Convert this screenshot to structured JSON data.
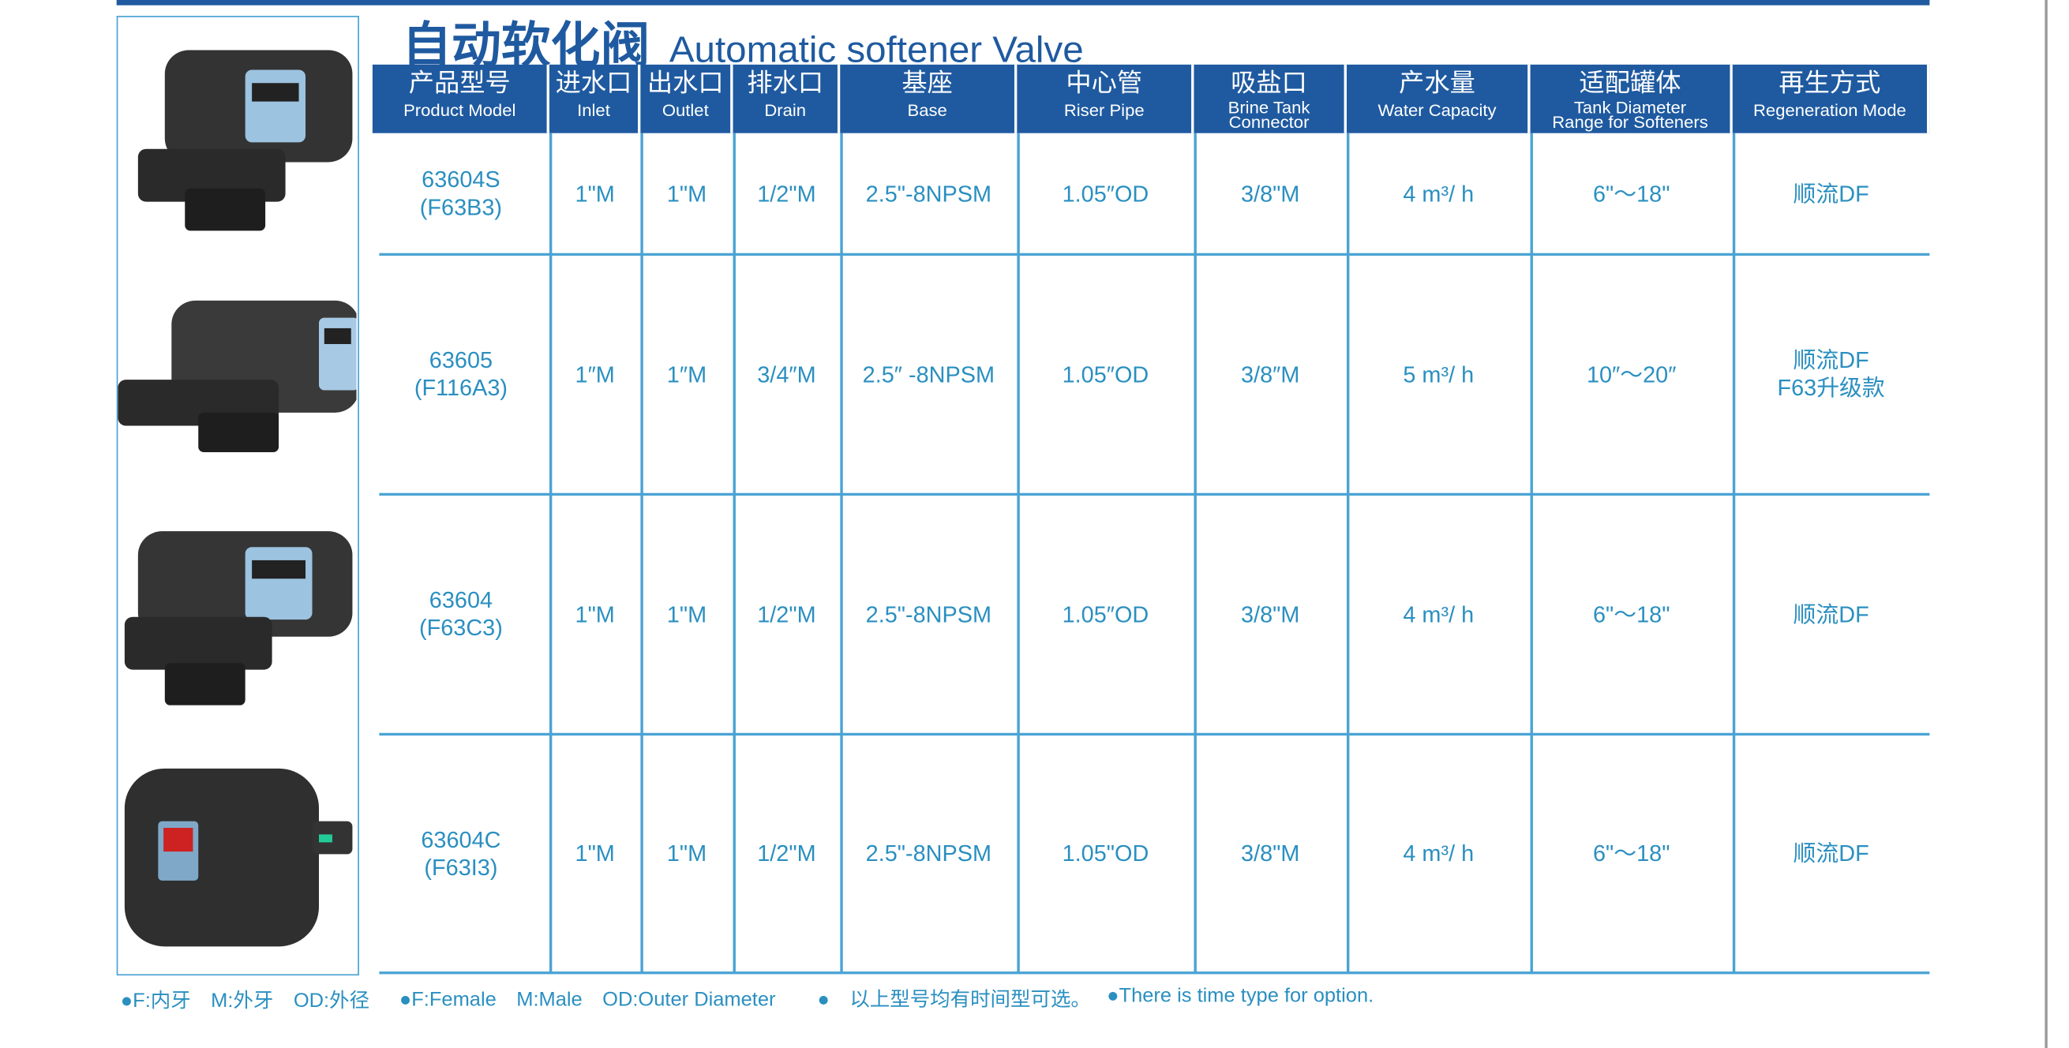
{
  "header": {
    "title_cn": "自动软化阀",
    "title_en": "Automatic softener Valve"
  },
  "table": {
    "columns": [
      {
        "cn": "产品型号",
        "en": [
          "Product Model"
        ]
      },
      {
        "cn": "进水口",
        "en": [
          "Inlet"
        ]
      },
      {
        "cn": "出水口",
        "en": [
          "Outlet"
        ]
      },
      {
        "cn": "排水口",
        "en": [
          "Drain"
        ]
      },
      {
        "cn": "基座",
        "en": [
          "Base"
        ]
      },
      {
        "cn": "中心管",
        "en": [
          "Riser Pipe"
        ]
      },
      {
        "cn": "吸盐口",
        "en": [
          "Brine Tank",
          "Connector"
        ]
      },
      {
        "cn": "产水量",
        "en": [
          "Water Capacity"
        ]
      },
      {
        "cn": "适配罐体",
        "en": [
          "Tank Diameter",
          "Range for Softeners"
        ]
      },
      {
        "cn": "再生方式",
        "en": [
          "Regeneration Mode"
        ]
      }
    ],
    "rows": [
      [
        [
          "63604S",
          "(F63B3)"
        ],
        [
          "1\"M"
        ],
        [
          "1\"M"
        ],
        [
          "1/2\"M"
        ],
        [
          "2.5\"-8NPSM"
        ],
        [
          "1.05″OD"
        ],
        [
          "3/8\"M"
        ],
        [
          "4 m³/ h"
        ],
        [
          "6\"～18\""
        ],
        [
          "顺流DF"
        ]
      ],
      [
        [
          "63605",
          "(F116A3)"
        ],
        [
          "1″M"
        ],
        [
          "1″M"
        ],
        [
          "3/4″M"
        ],
        [
          "2.5″ -8NPSM"
        ],
        [
          "1.05″OD"
        ],
        [
          "3/8″M"
        ],
        [
          "5 m³/ h"
        ],
        [
          "10″～20″"
        ],
        [
          "顺流DF",
          "F63升级款"
        ]
      ],
      [
        [
          "63604",
          "(F63C3)"
        ],
        [
          "1\"M"
        ],
        [
          "1\"M"
        ],
        [
          "1/2\"M"
        ],
        [
          "2.5\"-8NPSM"
        ],
        [
          "1.05″OD"
        ],
        [
          "3/8\"M"
        ],
        [
          "4 m³/ h"
        ],
        [
          "6\"～18\""
        ],
        [
          "顺流DF"
        ]
      ],
      [
        [
          "63604C",
          "(F63I3)"
        ],
        [
          "1\"M"
        ],
        [
          "1\"M"
        ],
        [
          "1/2\"M"
        ],
        [
          "2.5\"-8NPSM"
        ],
        [
          "1.05\"OD"
        ],
        [
          "3/8\"M"
        ],
        [
          "4 m³/ h"
        ],
        [
          "6\"～18\""
        ],
        [
          "顺流DF"
        ]
      ]
    ]
  },
  "footnotes": [
    "●F:内牙　M:外牙　OD:外径",
    "●F:Female　M:Male　OD:Outer Diameter",
    "●　以上型号均有时间型可选。",
    "●There is time type for option."
  ]
}
